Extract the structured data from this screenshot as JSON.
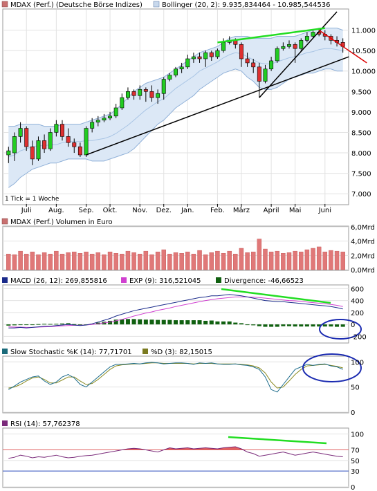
{
  "chart_data": [
    {
      "type": "candlestick",
      "title": "MDAX (Perf.) (Deutsche Börse Indizes)",
      "indicator_label": "Bollinger (20, 2): 9.935,834464 - 10.985,544536",
      "footnote": "1 Tick = 1 Woche",
      "x_ticks": [
        "Juli",
        "Aug.",
        "Sep.",
        "Okt.",
        "Nov.",
        "Dez.",
        "Jan.",
        "Feb.",
        "März",
        "April",
        "Mai",
        "Juni"
      ],
      "y_ticks": [
        "11.000",
        "10.500",
        "10.000",
        "9.500",
        "9.000",
        "8.500",
        "8.000",
        "7.500",
        "7.000"
      ],
      "ylim": [
        6750,
        11500
      ],
      "candles": [
        {
          "o": 7950,
          "c": 8050,
          "h": 8150,
          "l": 7750
        },
        {
          "o": 8000,
          "c": 8400,
          "h": 8500,
          "l": 7800
        },
        {
          "o": 8400,
          "c": 8600,
          "h": 8750,
          "l": 8250
        },
        {
          "o": 8600,
          "c": 8150,
          "h": 8650,
          "l": 8050
        },
        {
          "o": 8150,
          "c": 7850,
          "h": 8300,
          "l": 7700
        },
        {
          "o": 7850,
          "c": 8300,
          "h": 8400,
          "l": 7800
        },
        {
          "o": 8300,
          "c": 8100,
          "h": 8450,
          "l": 8000
        },
        {
          "o": 8100,
          "c": 8500,
          "h": 8600,
          "l": 8050
        },
        {
          "o": 8500,
          "c": 8700,
          "h": 8800,
          "l": 8400
        },
        {
          "o": 8700,
          "c": 8400,
          "h": 8800,
          "l": 8300
        },
        {
          "o": 8400,
          "c": 8250,
          "h": 8600,
          "l": 8150
        },
        {
          "o": 8250,
          "c": 8150,
          "h": 8350,
          "l": 8000
        },
        {
          "o": 8150,
          "c": 7950,
          "h": 8250,
          "l": 7900
        },
        {
          "o": 7950,
          "c": 8600,
          "h": 8650,
          "l": 7900
        },
        {
          "o": 8600,
          "c": 8750,
          "h": 8850,
          "l": 8500
        },
        {
          "o": 8750,
          "c": 8800,
          "h": 8900,
          "l": 8650
        },
        {
          "o": 8800,
          "c": 8850,
          "h": 8950,
          "l": 8750
        },
        {
          "o": 8850,
          "c": 8900,
          "h": 9000,
          "l": 8800
        },
        {
          "o": 8900,
          "c": 9100,
          "h": 9200,
          "l": 8850
        },
        {
          "o": 9100,
          "c": 9350,
          "h": 9450,
          "l": 9050
        },
        {
          "o": 9350,
          "c": 9500,
          "h": 9600,
          "l": 9300
        },
        {
          "o": 9500,
          "c": 9400,
          "h": 9550,
          "l": 9300
        },
        {
          "o": 9400,
          "c": 9550,
          "h": 9650,
          "l": 9300
        },
        {
          "o": 9550,
          "c": 9500,
          "h": 9600,
          "l": 9250
        },
        {
          "o": 9500,
          "c": 9350,
          "h": 9650,
          "l": 9250
        },
        {
          "o": 9350,
          "c": 9450,
          "h": 9550,
          "l": 9200
        },
        {
          "o": 9450,
          "c": 9800,
          "h": 9850,
          "l": 9300
        },
        {
          "o": 9800,
          "c": 9900,
          "h": 9950,
          "l": 9750
        },
        {
          "o": 9900,
          "c": 10050,
          "h": 10100,
          "l": 9850
        },
        {
          "o": 10050,
          "c": 10100,
          "h": 10200,
          "l": 9950
        },
        {
          "o": 10100,
          "c": 10300,
          "h": 10400,
          "l": 10050
        },
        {
          "o": 10300,
          "c": 10350,
          "h": 10450,
          "l": 10200
        },
        {
          "o": 10350,
          "c": 10300,
          "h": 10450,
          "l": 10200
        },
        {
          "o": 10300,
          "c": 10450,
          "h": 10500,
          "l": 10100
        },
        {
          "o": 10450,
          "c": 10350,
          "h": 10500,
          "l": 10250
        },
        {
          "o": 10350,
          "c": 10500,
          "h": 10550,
          "l": 10300
        },
        {
          "o": 10500,
          "c": 10700,
          "h": 10800,
          "l": 10450
        },
        {
          "o": 10700,
          "c": 10750,
          "h": 10850,
          "l": 10650
        },
        {
          "o": 10750,
          "c": 10650,
          "h": 10800,
          "l": 10550
        },
        {
          "o": 10650,
          "c": 10300,
          "h": 10700,
          "l": 10100
        },
        {
          "o": 10300,
          "c": 10200,
          "h": 10450,
          "l": 10100
        },
        {
          "o": 10200,
          "c": 10100,
          "h": 10300,
          "l": 9950
        },
        {
          "o": 10100,
          "c": 9750,
          "h": 10200,
          "l": 9350
        },
        {
          "o": 9750,
          "c": 10050,
          "h": 10150,
          "l": 9700
        },
        {
          "o": 10050,
          "c": 10250,
          "h": 10350,
          "l": 10000
        },
        {
          "o": 10250,
          "c": 10550,
          "h": 10600,
          "l": 10200
        },
        {
          "o": 10550,
          "c": 10600,
          "h": 10700,
          "l": 10500
        },
        {
          "o": 10600,
          "c": 10650,
          "h": 10750,
          "l": 10550
        },
        {
          "o": 10650,
          "c": 10550,
          "h": 10700,
          "l": 10200
        },
        {
          "o": 10550,
          "c": 10750,
          "h": 10800,
          "l": 10500
        },
        {
          "o": 10750,
          "c": 10850,
          "h": 10950,
          "l": 10700
        },
        {
          "o": 10850,
          "c": 10950,
          "h": 11000,
          "l": 10800
        },
        {
          "o": 10950,
          "c": 10900,
          "h": 11050,
          "l": 10850
        },
        {
          "o": 10900,
          "c": 10850,
          "h": 11000,
          "l": 10750
        },
        {
          "o": 10850,
          "c": 10750,
          "h": 10900,
          "l": 10650
        },
        {
          "o": 10750,
          "c": 10700,
          "h": 10850,
          "l": 10600
        },
        {
          "o": 10700,
          "c": 10600,
          "h": 10800,
          "l": 10450
        }
      ],
      "bollinger_upper": [
        8650,
        8650,
        8700,
        8700,
        8700,
        8700,
        8650,
        8650,
        8650,
        8700,
        8700,
        8700,
        8700,
        8750,
        8800,
        8850,
        8900,
        8950,
        9050,
        9200,
        9350,
        9500,
        9600,
        9700,
        9750,
        9800,
        9850,
        9950,
        10050,
        10150,
        10250,
        10350,
        10450,
        10500,
        10550,
        10600,
        10700,
        10800,
        10850,
        10850,
        10850,
        10800,
        10800,
        10800,
        10800,
        10850,
        10850,
        10850,
        10850,
        10900,
        10950,
        11000,
        11050,
        11050,
        11050,
        11050,
        11000
      ],
      "bollinger_lower": [
        7150,
        7250,
        7400,
        7500,
        7600,
        7650,
        7700,
        7750,
        7750,
        7800,
        7850,
        7850,
        7850,
        7850,
        7800,
        7800,
        7800,
        7850,
        7900,
        7950,
        8000,
        8100,
        8250,
        8400,
        8550,
        8700,
        8800,
        8950,
        9100,
        9200,
        9300,
        9400,
        9550,
        9650,
        9750,
        9850,
        9950,
        10000,
        10050,
        10000,
        9850,
        9750,
        9600,
        9550,
        9550,
        9600,
        9700,
        9800,
        9850,
        9900,
        9950,
        9950,
        10000,
        10050,
        10050,
        10000,
        10000
      ],
      "bollinger_mid": [
        7900,
        7950,
        8050,
        8100,
        8150,
        8175,
        8175,
        8200,
        8200,
        8250,
        8275,
        8275,
        8275,
        8300,
        8300,
        8325,
        8350,
        8400,
        8475,
        8575,
        8675,
        8800,
        8925,
        9050,
        9150,
        9250,
        9325,
        9450,
        9575,
        9675,
        9775,
        9875,
        10000,
        10075,
        10150,
        10225,
        10325,
        10400,
        10450,
        10425,
        10350,
        10275,
        10200,
        10175,
        10175,
        10225,
        10275,
        10325,
        10350,
        10400,
        10450,
        10475,
        10525,
        10550,
        10550,
        10525,
        10500
      ],
      "trendlines": [
        {
          "color": "#000000",
          "x1": 13,
          "y1": 7950,
          "x2": 57,
          "y2": 10350
        },
        {
          "color": "#000000",
          "x1": 42,
          "y1": 9350,
          "x2": 55,
          "y2": 11450
        },
        {
          "color": "#dd0000",
          "x1": 52,
          "y1": 11000,
          "x2": 60,
          "y2": 10200
        },
        {
          "color": "#22dd22",
          "x1": 35,
          "y1": 10700,
          "x2": 53,
          "y2": 11050
        }
      ]
    },
    {
      "type": "bar",
      "title": "MDAX (Perf.) Volumen in Euro",
      "y_ticks": [
        "6,0Mrd",
        "4,0Mrd",
        "2,0Mrd",
        "0,0Mrd"
      ],
      "ylim": [
        0,
        6
      ],
      "values": [
        2.2,
        2.1,
        2.6,
        2.2,
        2.5,
        2.1,
        2.4,
        2.2,
        2.6,
        2.2,
        2.4,
        2.5,
        2.3,
        2.5,
        2.2,
        2.4,
        2.1,
        2.5,
        2.3,
        2.2,
        2.6,
        2.4,
        2.2,
        2.6,
        2.1,
        2.5,
        2.8,
        2.2,
        2.4,
        2.3,
        2.5,
        2.2,
        2.7,
        2.1,
        2.4,
        2.6,
        2.3,
        2.6,
        2.2,
        3.0,
        2.4,
        2.5,
        4.3,
        2.9,
        2.5,
        2.6,
        2.3,
        2.4,
        2.6,
        2.5,
        2.8,
        3.0,
        3.2,
        2.5,
        2.7,
        2.6,
        2.5
      ]
    },
    {
      "type": "line",
      "title": "MACD",
      "macd_label": "MACD (26, 12): 269,855816",
      "ema_label": "EXP (9): 316,521045",
      "divergence_label": "Divergence: -46,66523",
      "y_ticks": [
        "600",
        "400",
        "200",
        "0",
        "-200"
      ],
      "ylim": [
        -300,
        650
      ],
      "macd": [
        -60,
        -60,
        -50,
        -60,
        -50,
        -40,
        -30,
        -30,
        -20,
        -10,
        0,
        -10,
        -20,
        -10,
        10,
        40,
        70,
        100,
        140,
        170,
        200,
        230,
        250,
        270,
        290,
        310,
        330,
        350,
        370,
        390,
        410,
        430,
        450,
        460,
        480,
        480,
        490,
        500,
        490,
        480,
        460,
        440,
        420,
        400,
        390,
        380,
        380,
        370,
        360,
        350,
        340,
        330,
        320,
        310,
        300,
        280,
        260
      ],
      "ema": [
        -40,
        -45,
        -45,
        -50,
        -50,
        -45,
        -40,
        -38,
        -30,
        -25,
        -20,
        -15,
        -15,
        -10,
        0,
        10,
        25,
        40,
        60,
        85,
        110,
        140,
        165,
        190,
        210,
        235,
        255,
        275,
        300,
        320,
        340,
        360,
        380,
        400,
        415,
        430,
        440,
        450,
        460,
        460,
        460,
        455,
        450,
        440,
        430,
        420,
        410,
        400,
        395,
        385,
        375,
        365,
        355,
        345,
        335,
        320,
        300
      ],
      "divergence": [
        -20,
        -15,
        -5,
        -10,
        0,
        5,
        10,
        8,
        10,
        15,
        20,
        5,
        -5,
        0,
        10,
        30,
        45,
        60,
        80,
        85,
        90,
        90,
        85,
        80,
        80,
        75,
        75,
        75,
        70,
        70,
        70,
        70,
        70,
        60,
        65,
        50,
        50,
        50,
        30,
        20,
        0,
        -15,
        -30,
        -40,
        -40,
        -40,
        -30,
        -30,
        -35,
        -35,
        -35,
        -35,
        -35,
        -35,
        -35,
        -40,
        -40
      ]
    },
    {
      "type": "line",
      "title": "Slow Stochastic",
      "k_label": "Slow Stochastic %K (14): 77,71701",
      "d_label": "%D (3): 82,15015",
      "y_ticks": [
        "100",
        "50",
        "0"
      ],
      "ylim": [
        0,
        110
      ],
      "k": [
        45,
        52,
        60,
        65,
        70,
        72,
        62,
        55,
        60,
        70,
        75,
        68,
        55,
        50,
        60,
        70,
        80,
        90,
        95,
        95,
        96,
        97,
        96,
        98,
        99,
        98,
        96,
        97,
        98,
        98,
        97,
        95,
        98,
        97,
        98,
        96,
        95,
        95,
        96,
        94,
        93,
        90,
        85,
        70,
        45,
        40,
        55,
        70,
        85,
        90,
        95,
        93,
        95,
        96,
        92,
        90,
        85
      ],
      "d": [
        48,
        50,
        55,
        62,
        68,
        70,
        65,
        58,
        58,
        64,
        70,
        70,
        62,
        55,
        57,
        65,
        75,
        85,
        92,
        94,
        95,
        96,
        96,
        97,
        98,
        98,
        97,
        97,
        97,
        97,
        97,
        96,
        97,
        97,
        97,
        96,
        96,
        96,
        96,
        95,
        94,
        92,
        88,
        78,
        60,
        48,
        50,
        62,
        75,
        85,
        92,
        93,
        94,
        95,
        93,
        91,
        88
      ]
    },
    {
      "type": "line",
      "title": "RSI",
      "rsi_label": "RSI (14): 57,762378",
      "y_ticks": [
        "100",
        "70",
        "50",
        "30",
        "0"
      ],
      "ylim": [
        0,
        110
      ],
      "upper_band": 70,
      "lower_band": 30,
      "rsi": [
        54,
        56,
        60,
        58,
        55,
        57,
        56,
        58,
        60,
        57,
        55,
        56,
        58,
        59,
        60,
        62,
        64,
        66,
        68,
        70,
        72,
        73,
        72,
        70,
        68,
        66,
        70,
        74,
        72,
        73,
        74,
        72,
        73,
        74,
        73,
        72,
        74,
        75,
        76,
        72,
        66,
        63,
        58,
        60,
        62,
        64,
        66,
        63,
        60,
        62,
        64,
        66,
        64,
        62,
        60,
        58,
        57
      ]
    }
  ]
}
